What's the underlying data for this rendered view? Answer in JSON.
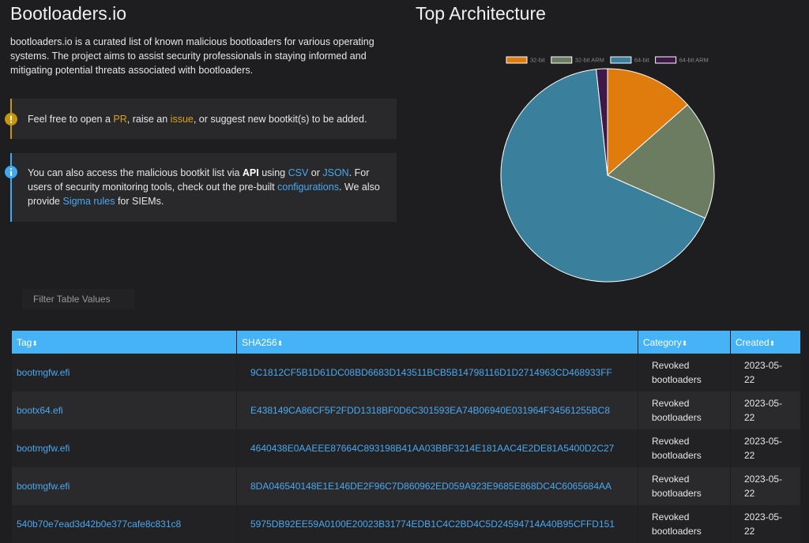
{
  "header": {
    "title": "Bootloaders.io",
    "description": "bootloaders.io is a curated list of known malicious bootloaders for various operating systems. The project aims to assist security professionals in staying informed and mitigating potential threats associated with bootloaders."
  },
  "notices": [
    {
      "parts": [
        "Feel free to open a ",
        "PR",
        ", raise an ",
        "issue",
        ", or suggest new bootkit(s) to be added."
      ]
    },
    {
      "parts": [
        "You can also access the malicious bootkit list via ",
        "API",
        " using ",
        "CSV",
        " or ",
        "JSON",
        ". For users of security monitoring tools, check out the pre-built ",
        "configurations",
        ". We also provide ",
        "Sigma rules",
        " for SIEMs."
      ]
    }
  ],
  "chart_data": {
    "type": "pie",
    "title": "Top Architecture",
    "categories": [
      "32-bit",
      "32-bit ARM",
      "64-bit",
      "64-bit ARM"
    ],
    "values": [
      13.5,
      18.1,
      66.7,
      1.7
    ],
    "colors": [
      "#e07b0e",
      "#6b7c61",
      "#3a7f9b",
      "#3d1848"
    ]
  },
  "filter": {
    "placeholder": "Filter Table Values"
  },
  "table": {
    "columns": [
      "Tag",
      "SHA256",
      "Category",
      "Created"
    ],
    "rows": [
      [
        "bootmgfw.efi",
        "9C1812CF5B1D61DC08BD6683D143511BCB5B14798116D1D2714963CD468933FF",
        "Revoked bootloaders",
        "2023-05-22"
      ],
      [
        "bootx64.efi",
        "E438149CA86CF5F2FDD1318BF0D6C301593EA74B06940E031964F34561255BC8",
        "Revoked bootloaders",
        "2023-05-22"
      ],
      [
        "bootmgfw.efi",
        "4640438E0AAEEE87664C893198B41AA03BBF3214E181AAC4E2DE81A5400D2C27",
        "Revoked bootloaders",
        "2023-05-22"
      ],
      [
        "bootmgfw.efi",
        "8DA046540148E1E146DE2F96C7D860962ED059A923E9685E868DC4C6065684AA",
        "Revoked bootloaders",
        "2023-05-22"
      ],
      [
        "540b70e7ead3d42b0e377cafe8c831c8",
        "5975DB92EE59A0100E20023B31774EDB1C4C2BD4C5D24594714A40B95CFFD151",
        "Revoked bootloaders",
        "2023-05-22"
      ]
    ]
  }
}
